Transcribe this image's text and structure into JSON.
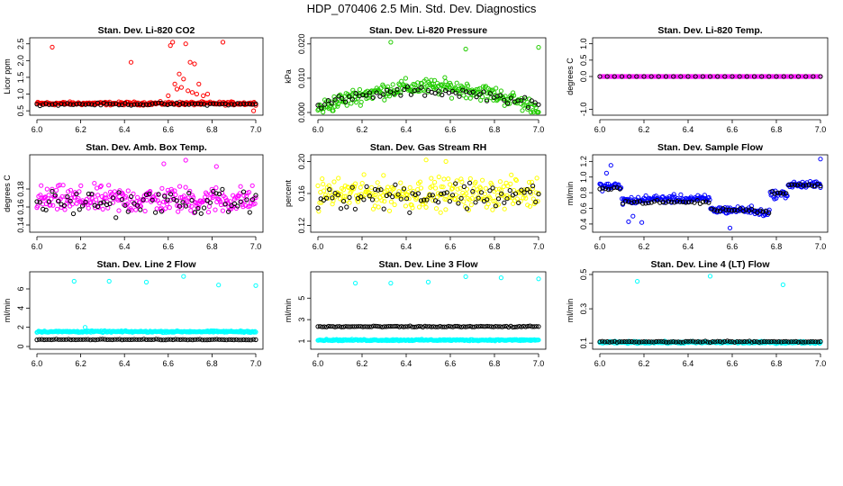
{
  "figure_title": "HDP_070406  2.5 Min. Std. Dev. Diagnostics",
  "colors": {
    "red": "#ff0000",
    "green": "#22cc00",
    "magenta": "#ff00ff",
    "yellow": "#ffff00",
    "blue": "#0000ff",
    "cyan": "#00ffff",
    "black": "#000000"
  },
  "chart_data": [
    {
      "id": "co2",
      "type": "scatter",
      "title": "Stan. Dev. Li-820 CO2",
      "ylabel": "Licor ppm",
      "xlim": [
        6.0,
        7.0
      ],
      "ylim": [
        0.45,
        2.6
      ],
      "xticks": [
        "6.0",
        "6.2",
        "6.4",
        "6.6",
        "6.8",
        "7.0"
      ],
      "yticks": [
        "0.5",
        "1.0",
        "1.5",
        "2.0",
        "2.5"
      ],
      "main_color": "red",
      "main": {
        "base": 0.72,
        "spread": 0.07,
        "density": 1.0
      },
      "black": {
        "base": 0.7,
        "spread": 0.05,
        "density": 0.28
      },
      "points": [
        [
          6.07,
          2.4
        ],
        [
          6.43,
          1.95
        ],
        [
          6.61,
          2.45
        ],
        [
          6.62,
          2.55
        ],
        [
          6.65,
          1.6
        ],
        [
          6.7,
          1.95
        ],
        [
          6.72,
          1.9
        ],
        [
          6.68,
          2.5
        ],
        [
          6.85,
          2.55
        ],
        [
          6.63,
          1.3
        ],
        [
          6.66,
          1.2
        ],
        [
          6.69,
          1.1
        ],
        [
          6.71,
          1.05
        ],
        [
          6.73,
          1.0
        ],
        [
          6.76,
          0.95
        ],
        [
          6.64,
          1.15
        ],
        [
          6.67,
          1.45
        ],
        [
          6.74,
          1.3
        ],
        [
          6.78,
          1.0
        ],
        [
          6.6,
          0.95
        ],
        [
          6.99,
          0.5
        ]
      ]
    },
    {
      "id": "pressure",
      "type": "scatter",
      "title": "Stan. Dev. Li-820 Pressure",
      "ylabel": "kPa",
      "xlim": [
        6.0,
        7.0
      ],
      "ylim": [
        0.0,
        0.021
      ],
      "xticks": [
        "6.0",
        "6.2",
        "6.4",
        "6.6",
        "6.8",
        "7.0"
      ],
      "yticks": [
        "0.000",
        "0.010",
        "0.020"
      ],
      "main_color": "green",
      "main": {
        "shape": "arc",
        "center": 6.5,
        "peak": 0.0075,
        "edge": 0.001,
        "spread": 0.0035,
        "density": 1.0
      },
      "black": {
        "shape": "arc",
        "center": 6.5,
        "peak": 0.0062,
        "edge": 0.002,
        "spread": 0.002,
        "density": 0.25
      },
      "points": [
        [
          6.33,
          0.0205
        ],
        [
          6.67,
          0.0185
        ],
        [
          7.0,
          0.019
        ]
      ]
    },
    {
      "id": "temp",
      "type": "scatter",
      "title": "Stan. Dev. Li-820 Temp.",
      "ylabel": "degrees C",
      "xlim": [
        6.0,
        7.0
      ],
      "ylim": [
        -1.1,
        1.1
      ],
      "xticks": [
        "6.0",
        "6.2",
        "6.4",
        "6.6",
        "6.8",
        "7.0"
      ],
      "yticks": [
        "-1.0",
        "0.0",
        "0.5",
        "1.0"
      ],
      "main_color": "magenta",
      "main": {
        "base": 0.0,
        "spread": 0.0,
        "density": 0.55
      },
      "black": {
        "base": 0.0,
        "spread": 0.0,
        "density": 0.12
      },
      "points": []
    },
    {
      "id": "ambbox",
      "type": "scatter",
      "title": "Stan. Dev. Amb. Box Temp.",
      "ylabel": "degrees C",
      "xlim": [
        6.0,
        7.0
      ],
      "ylim": [
        0.135,
        0.215
      ],
      "xticks": [
        "6.0",
        "6.2",
        "6.4",
        "6.6",
        "6.8",
        "7.0"
      ],
      "yticks": [
        "0.14",
        "0.16",
        "0.18"
      ],
      "main_color": "magenta",
      "main": {
        "base": 0.168,
        "spread": 0.022,
        "density": 1.0
      },
      "black": {
        "base": 0.165,
        "spread": 0.02,
        "density": 0.28
      },
      "points": [
        [
          6.68,
          0.212
        ],
        [
          6.82,
          0.205
        ],
        [
          6.58,
          0.208
        ]
      ]
    },
    {
      "id": "rh",
      "type": "scatter",
      "title": "Stan. Dev. Gas Stream RH",
      "ylabel": "percent",
      "xlim": [
        6.0,
        7.0
      ],
      "ylim": [
        0.115,
        0.205
      ],
      "xticks": [
        "6.0",
        "6.2",
        "6.4",
        "6.6",
        "6.8",
        "7.0"
      ],
      "yticks": [
        "0.12",
        "0.16",
        "0.20"
      ],
      "main_color": "yellow",
      "main": {
        "base": 0.16,
        "spread": 0.028,
        "density": 1.0
      },
      "black": {
        "base": 0.158,
        "spread": 0.026,
        "density": 0.3
      },
      "points": [
        [
          6.49,
          0.202
        ],
        [
          6.58,
          0.2
        ]
      ]
    },
    {
      "id": "sampleflow",
      "type": "scatter",
      "title": "Stan. Dev. Sample Flow",
      "ylabel": "ml/min",
      "xlim": [
        6.0,
        7.0
      ],
      "ylim": [
        0.33,
        1.25
      ],
      "xticks": [
        "6.0",
        "6.2",
        "6.4",
        "6.6",
        "6.8",
        "7.0"
      ],
      "yticks": [
        "0.4",
        "0.6",
        "0.8",
        "1.0",
        "1.2"
      ],
      "main_color": "blue",
      "main": {
        "shape": "steps",
        "segments": [
          [
            6.0,
            6.1,
            0.88
          ],
          [
            6.1,
            6.2,
            0.7
          ],
          [
            6.2,
            6.5,
            0.72
          ],
          [
            6.5,
            6.7,
            0.58
          ],
          [
            6.7,
            6.77,
            0.55
          ],
          [
            6.77,
            6.85,
            0.78
          ],
          [
            6.85,
            7.0,
            0.9
          ]
        ],
        "spread": 0.07,
        "density": 1.0
      },
      "black": {
        "shape": "steps",
        "segments": [
          [
            6.0,
            6.1,
            0.86
          ],
          [
            6.1,
            6.2,
            0.68
          ],
          [
            6.2,
            6.5,
            0.68
          ],
          [
            6.5,
            6.7,
            0.58
          ],
          [
            6.7,
            6.77,
            0.56
          ],
          [
            6.77,
            6.85,
            0.8
          ],
          [
            6.85,
            7.0,
            0.9
          ]
        ],
        "spread": 0.03,
        "density": 0.3
      },
      "points": [
        [
          6.05,
          1.15
        ],
        [
          7.0,
          1.23
        ],
        [
          6.59,
          0.35
        ],
        [
          6.15,
          0.5
        ],
        [
          6.13,
          0.43
        ],
        [
          6.19,
          0.42
        ],
        [
          6.03,
          1.05
        ]
      ]
    },
    {
      "id": "line2",
      "type": "scatter",
      "title": "Stan. Dev. Line 2 Flow",
      "ylabel": "ml/min",
      "xlim": [
        6.0,
        7.0
      ],
      "ylim": [
        0.0,
        7.5
      ],
      "xticks": [
        "6.0",
        "6.2",
        "6.4",
        "6.6",
        "6.8",
        "7.0"
      ],
      "yticks": [
        "0",
        "2",
        "4",
        "6"
      ],
      "main_color": "cyan",
      "main": {
        "base": 1.55,
        "spread": 0.12,
        "density": 1.0
      },
      "black": {
        "base": 0.72,
        "spread": 0.06,
        "density": 0.35
      },
      "points": [
        [
          6.17,
          6.8
        ],
        [
          6.33,
          6.8
        ],
        [
          6.5,
          6.7
        ],
        [
          6.67,
          7.3
        ],
        [
          6.83,
          6.4
        ],
        [
          7.0,
          6.35
        ],
        [
          6.22,
          2.0
        ]
      ]
    },
    {
      "id": "line3",
      "type": "scatter",
      "title": "Stan. Dev. Line 3 Flow",
      "ylabel": "ml/min",
      "xlim": [
        6.0,
        7.0
      ],
      "ylim": [
        0.5,
        7.2
      ],
      "xticks": [
        "6.0",
        "6.2",
        "6.4",
        "6.6",
        "6.8",
        "7.0"
      ],
      "yticks": [
        "1",
        "3",
        "5"
      ],
      "main_color": "cyan",
      "main": {
        "base": 1.1,
        "spread": 0.1,
        "density": 1.0
      },
      "black": {
        "base": 2.35,
        "spread": 0.08,
        "density": 0.4
      },
      "points": [
        [
          6.17,
          6.4
        ],
        [
          6.33,
          6.4
        ],
        [
          6.5,
          6.5
        ],
        [
          6.67,
          7.0
        ],
        [
          6.83,
          6.9
        ],
        [
          7.0,
          6.8
        ]
      ]
    },
    {
      "id": "line4",
      "type": "scatter",
      "title": "Stan. Dev. Line 4 (LT) Flow",
      "ylabel": "ml/min",
      "xlim": [
        6.0,
        7.0
      ],
      "ylim": [
        0.08,
        0.5
      ],
      "xticks": [
        "6.0",
        "6.2",
        "6.4",
        "6.6",
        "6.8",
        "7.0"
      ],
      "yticks": [
        "0.1",
        "0.3",
        "0.5"
      ],
      "main_color": "cyan",
      "main": {
        "base": 0.104,
        "spread": 0.009,
        "density": 1.0
      },
      "black": {
        "base": 0.108,
        "spread": 0.005,
        "density": 0.35
      },
      "points": [
        [
          6.17,
          0.46
        ],
        [
          6.5,
          0.49
        ],
        [
          6.83,
          0.44
        ]
      ]
    }
  ]
}
